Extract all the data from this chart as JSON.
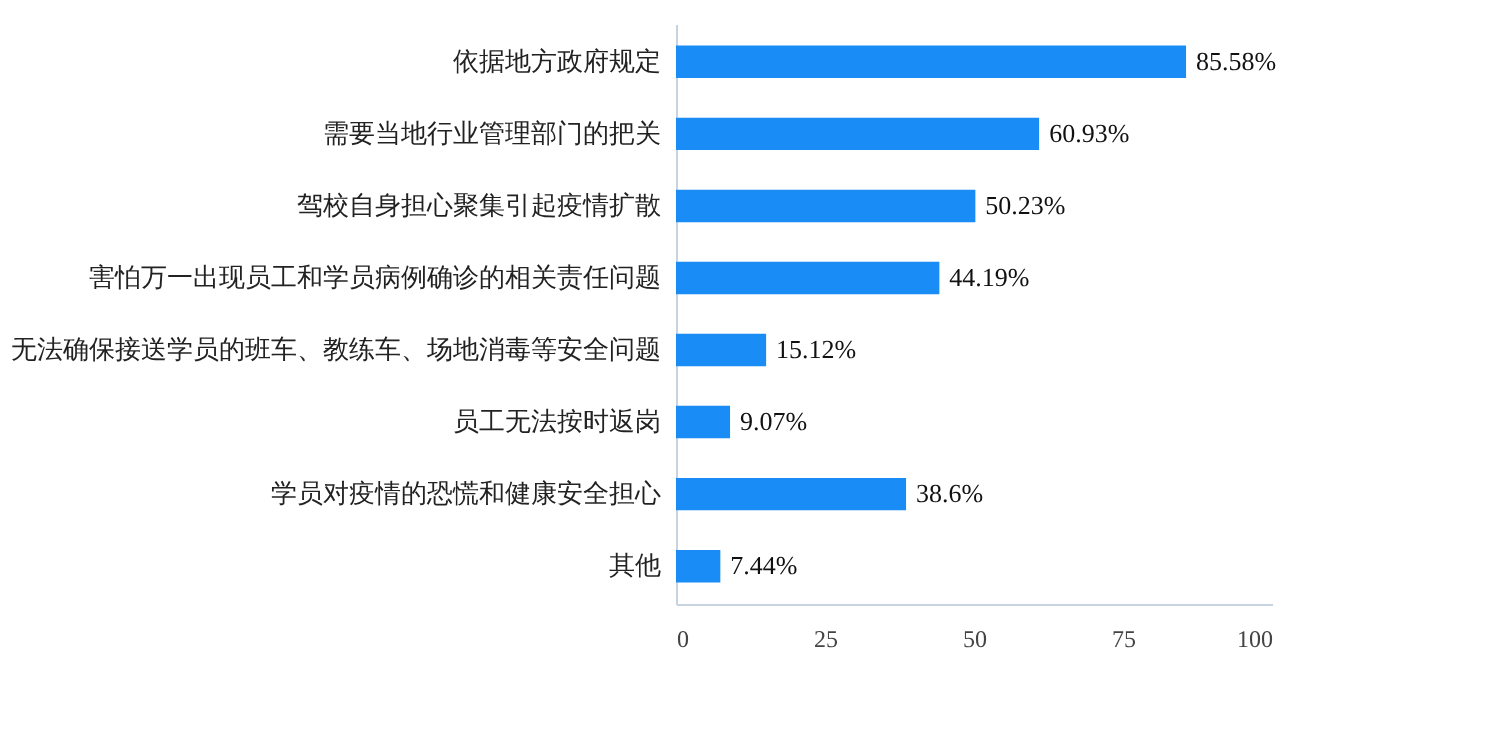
{
  "chart_data": {
    "type": "bar",
    "orientation": "horizontal",
    "categories": [
      "依据地方政府规定",
      "需要当地行业管理部门的把关",
      "驾校自身担心聚集引起疫情扩散",
      "害怕万一出现员工和学员病例确诊的相关责任问题",
      "无法确保接送学员的班车、教练车、场地消毒等安全问题",
      "员工无法按时返岗",
      "学员对疫情的恐慌和健康安全担心",
      "其他"
    ],
    "values": [
      85.58,
      60.93,
      50.23,
      44.19,
      15.12,
      9.07,
      38.6,
      7.44
    ],
    "value_labels": [
      "85.58%",
      "60.93%",
      "50.23%",
      "44.19%",
      "15.12%",
      "9.07%",
      "38.6%",
      "7.44%"
    ],
    "color": "#1a8cf5",
    "xlim": [
      0,
      100
    ],
    "xticks": [
      0,
      25,
      50,
      75,
      100
    ],
    "grid": false
  }
}
